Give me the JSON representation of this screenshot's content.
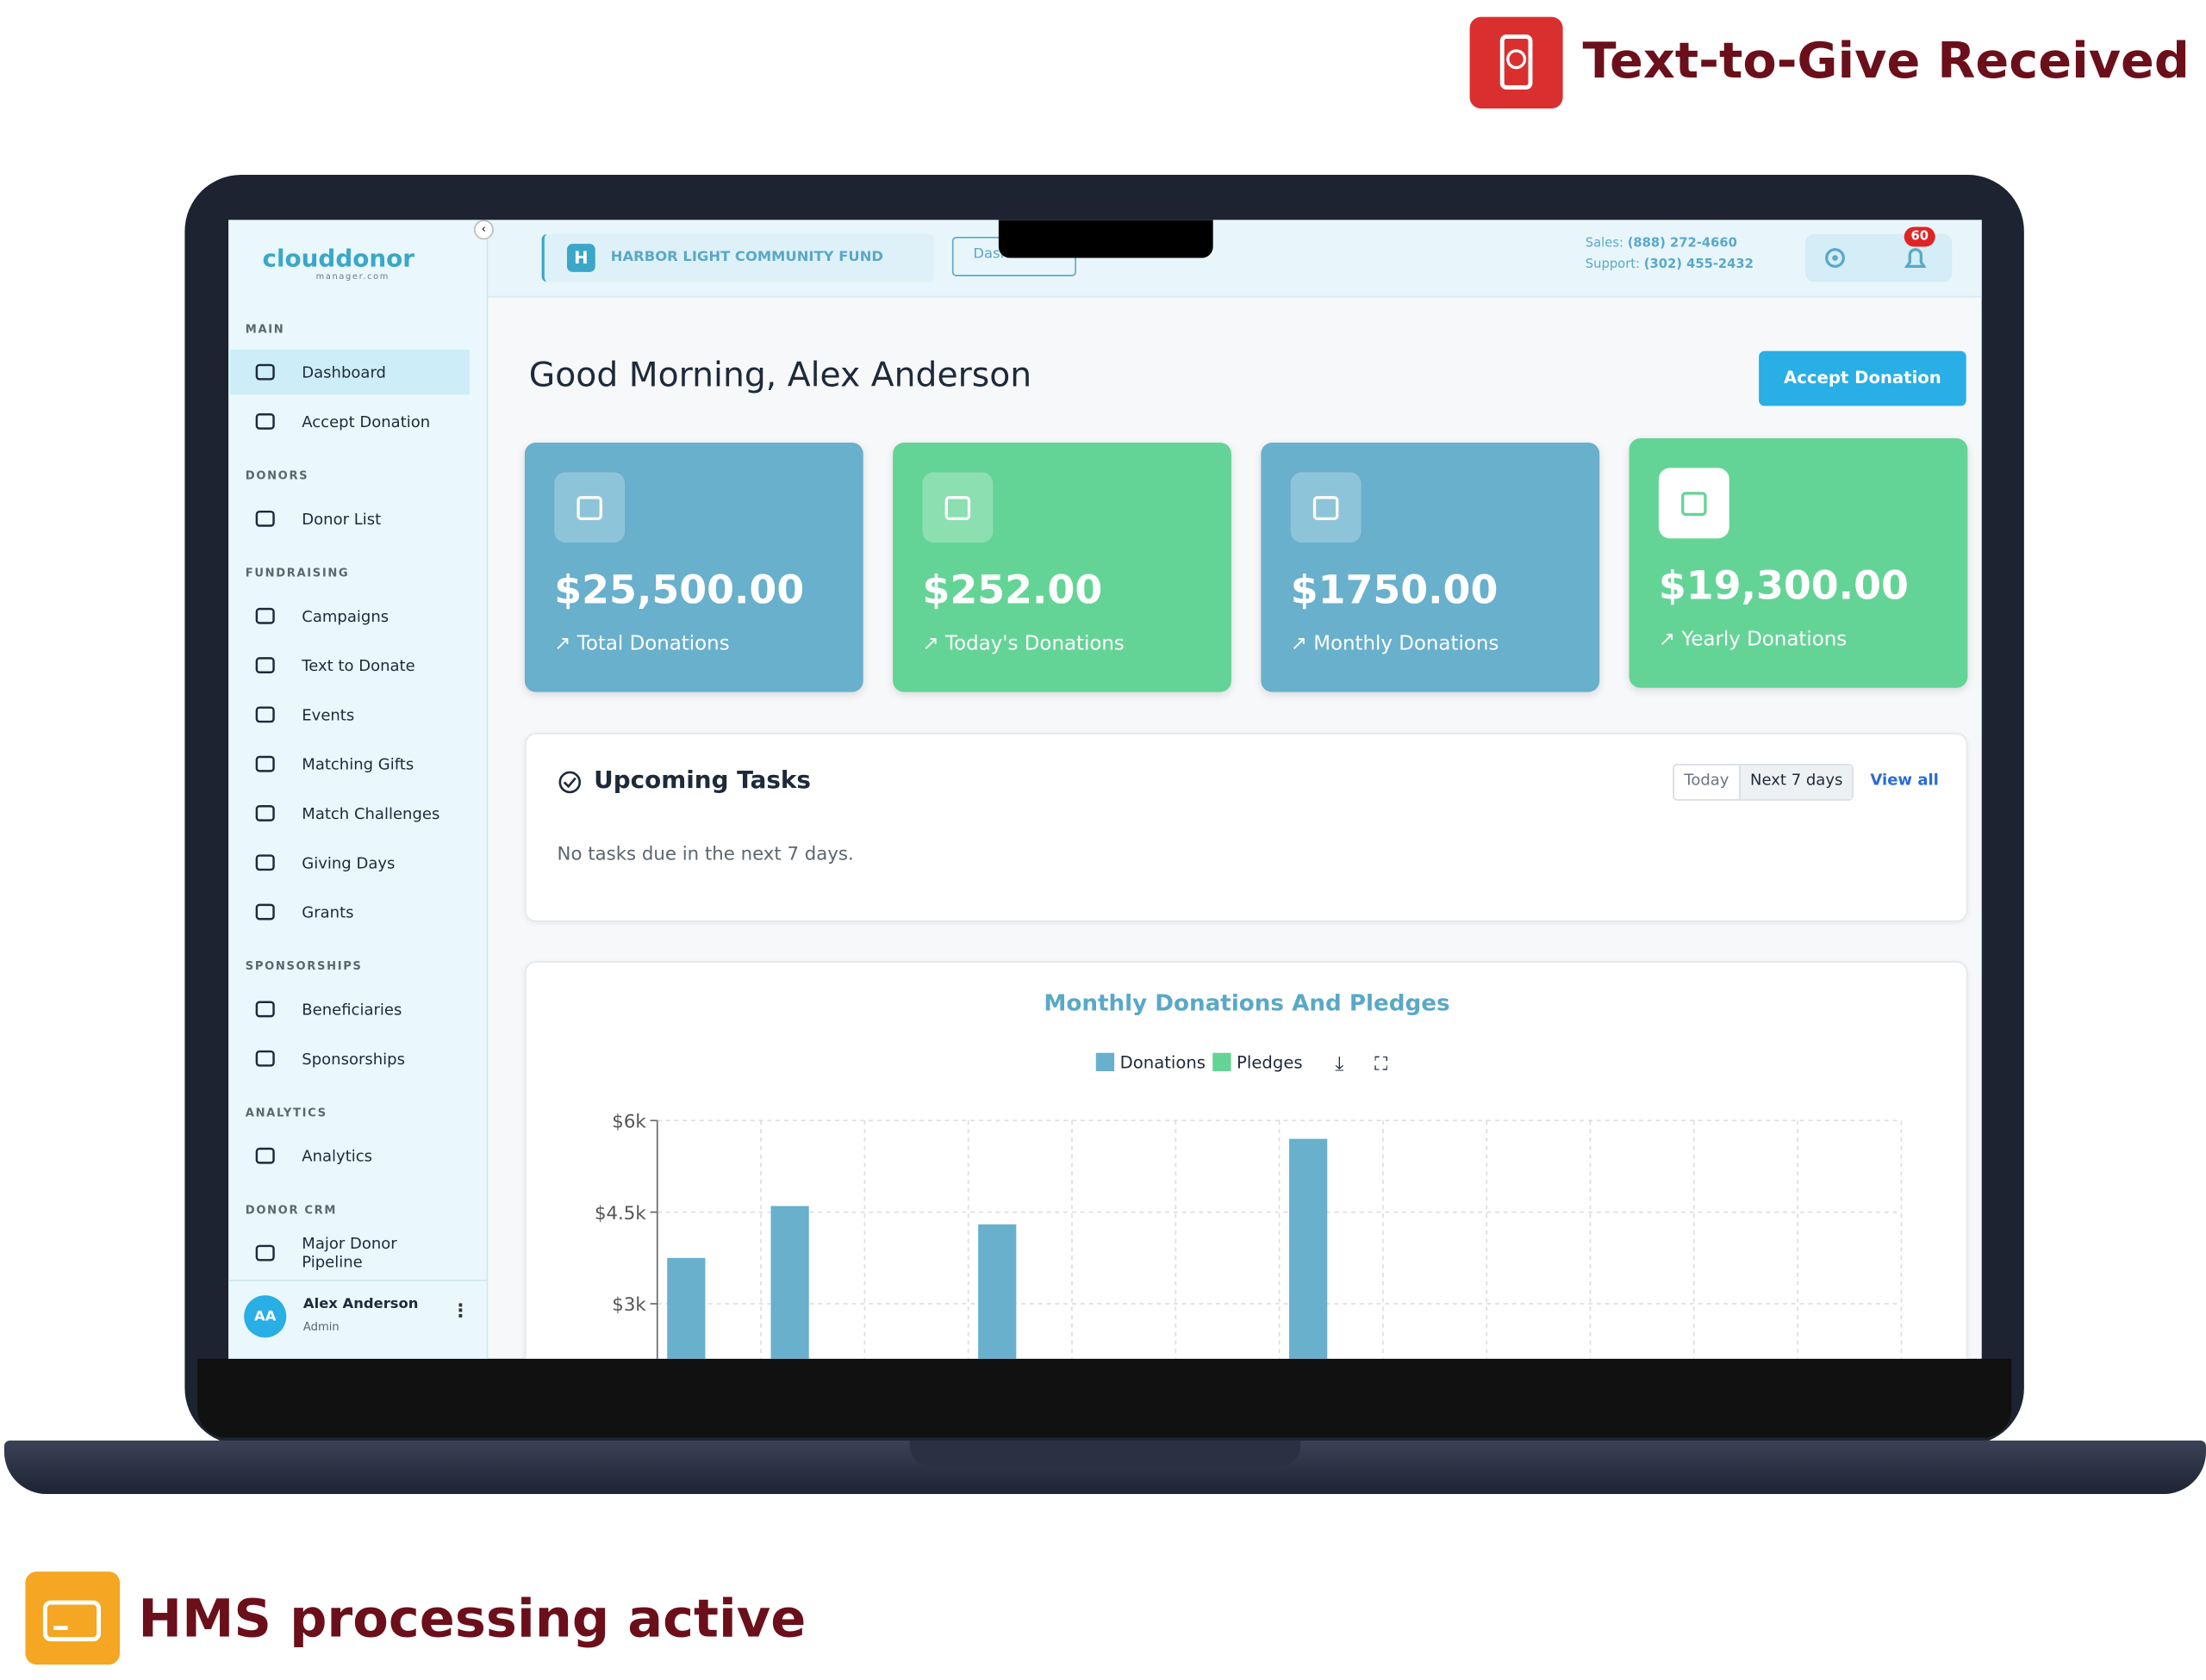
{
  "badges": {
    "top": "Text-to-Give Received",
    "bottom": "HMS processing active"
  },
  "sidebar": {
    "logo": "clouddonor",
    "logo_sub": "manager.com",
    "sections": [
      {
        "title": "MAIN",
        "items": [
          "Dashboard",
          "Accept Donation"
        ]
      },
      {
        "title": "DONORS",
        "items": [
          "Donor List"
        ]
      },
      {
        "title": "FUNDRAISING",
        "items": [
          "Campaigns",
          "Text to Donate",
          "Events",
          "Matching Gifts",
          "Match Challenges",
          "Giving Days",
          "Grants"
        ]
      },
      {
        "title": "SPONSORSHIPS",
        "items": [
          "Beneficiaries",
          "Sponsorships"
        ]
      },
      {
        "title": "ANALYTICS",
        "items": [
          "Analytics"
        ]
      },
      {
        "title": "DONOR CRM",
        "items": [
          "Major Donor Pipeline"
        ]
      }
    ],
    "user": {
      "initials": "AA",
      "name": "Alex Anderson",
      "role": "Admin"
    }
  },
  "topbar": {
    "org_initial": "H",
    "org": "HARBOR LIGHT COMMUNITY FUND",
    "breadcrumb": "Dashboard",
    "sales_label": "Sales:",
    "sales": "(888) 272-4660",
    "support_label": "Support:",
    "support": "(302) 455-2432",
    "notifications": 60
  },
  "greeting": "Good Morning, Alex Anderson",
  "accept_button": "Accept Donation",
  "stats": [
    {
      "value": "$25,500.00",
      "label": "Total Donations"
    },
    {
      "value": "$252.00",
      "label": "Today's Donations"
    },
    {
      "value": "$1750.00",
      "label": "Monthly Donations"
    },
    {
      "value": "$19,300.00",
      "label": "Yearly Donations"
    }
  ],
  "tasks": {
    "title": "Upcoming Tasks",
    "filters": [
      "Today",
      "Next 7 days"
    ],
    "view_all": "View all",
    "empty": "No tasks due in the next 7 days."
  },
  "chart_data": {
    "type": "bar",
    "title": "Monthly Donations And Pledges",
    "series": [
      {
        "name": "Donations",
        "color": "#68b0cc",
        "values": [
          3750,
          4600,
          0,
          4300,
          0,
          0,
          5700,
          0,
          0,
          0,
          0,
          0
        ]
      },
      {
        "name": "Pledges",
        "color": "#64d496",
        "values": [
          0,
          0,
          0,
          0,
          0,
          0,
          0,
          0,
          0,
          0,
          0,
          0
        ]
      }
    ],
    "ylim": [
      0,
      6000
    ],
    "yticks": [
      {
        "value": 3000,
        "label": "$3k"
      },
      {
        "value": 4500,
        "label": "$4.5k"
      },
      {
        "value": 6000,
        "label": "$6k"
      }
    ],
    "grid": true
  }
}
